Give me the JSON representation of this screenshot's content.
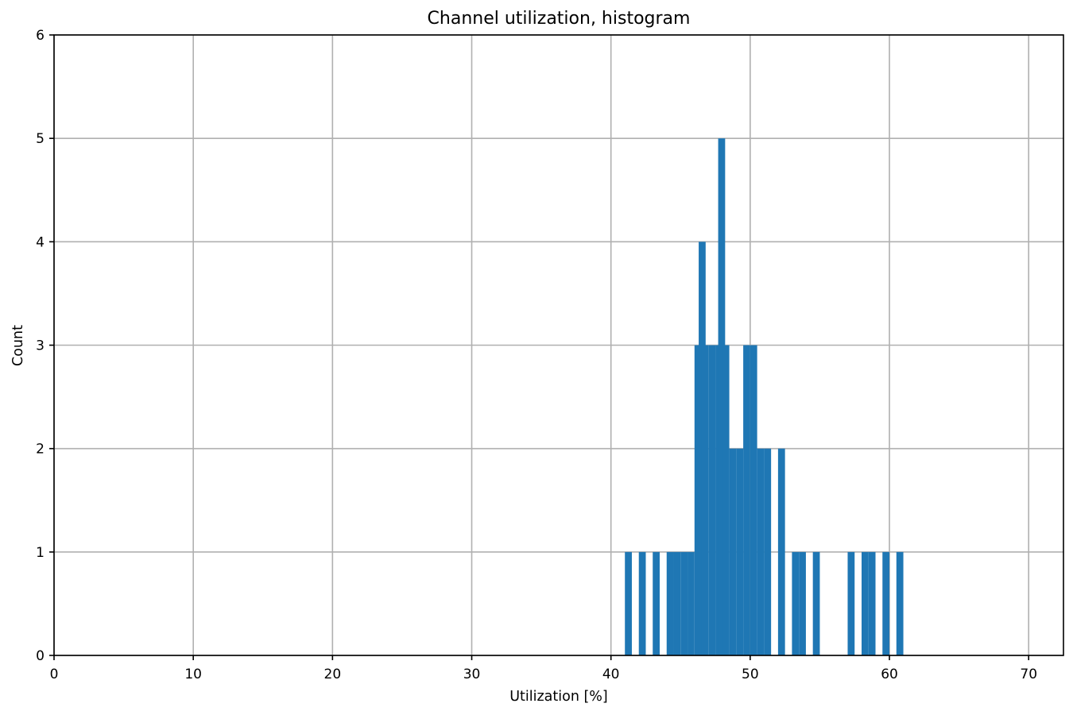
{
  "chart_data": {
    "type": "bar",
    "title": "Channel utilization, histogram",
    "xlabel": "Utilization [%]",
    "ylabel": "Count",
    "xlim": [
      0,
      72.5
    ],
    "ylim": [
      0,
      6
    ],
    "xticks": [
      0,
      10,
      20,
      30,
      40,
      50,
      60,
      70
    ],
    "yticks": [
      0,
      1,
      2,
      3,
      4,
      5,
      6
    ],
    "grid": true,
    "bin_width": 0.5,
    "bar_color": "#1f77b4",
    "bins": [
      {
        "x": 41.0,
        "count": 1
      },
      {
        "x": 42.0,
        "count": 1
      },
      {
        "x": 43.0,
        "count": 1
      },
      {
        "x": 44.0,
        "count": 1
      },
      {
        "x": 44.5,
        "count": 1
      },
      {
        "x": 45.0,
        "count": 1
      },
      {
        "x": 45.5,
        "count": 1
      },
      {
        "x": 46.0,
        "count": 3
      },
      {
        "x": 46.3,
        "count": 4
      },
      {
        "x": 46.5,
        "count": 3
      },
      {
        "x": 47.0,
        "count": 3
      },
      {
        "x": 47.5,
        "count": 3
      },
      {
        "x": 47.7,
        "count": 5
      },
      {
        "x": 48.0,
        "count": 3
      },
      {
        "x": 48.5,
        "count": 2
      },
      {
        "x": 49.0,
        "count": 2
      },
      {
        "x": 49.5,
        "count": 3
      },
      {
        "x": 50.0,
        "count": 3
      },
      {
        "x": 50.5,
        "count": 2
      },
      {
        "x": 51.0,
        "count": 2
      },
      {
        "x": 52.0,
        "count": 2
      },
      {
        "x": 53.0,
        "count": 1
      },
      {
        "x": 53.5,
        "count": 1
      },
      {
        "x": 54.5,
        "count": 1
      },
      {
        "x": 57.0,
        "count": 1
      },
      {
        "x": 58.0,
        "count": 1
      },
      {
        "x": 58.5,
        "count": 1
      },
      {
        "x": 59.5,
        "count": 1
      },
      {
        "x": 60.5,
        "count": 1
      }
    ]
  }
}
